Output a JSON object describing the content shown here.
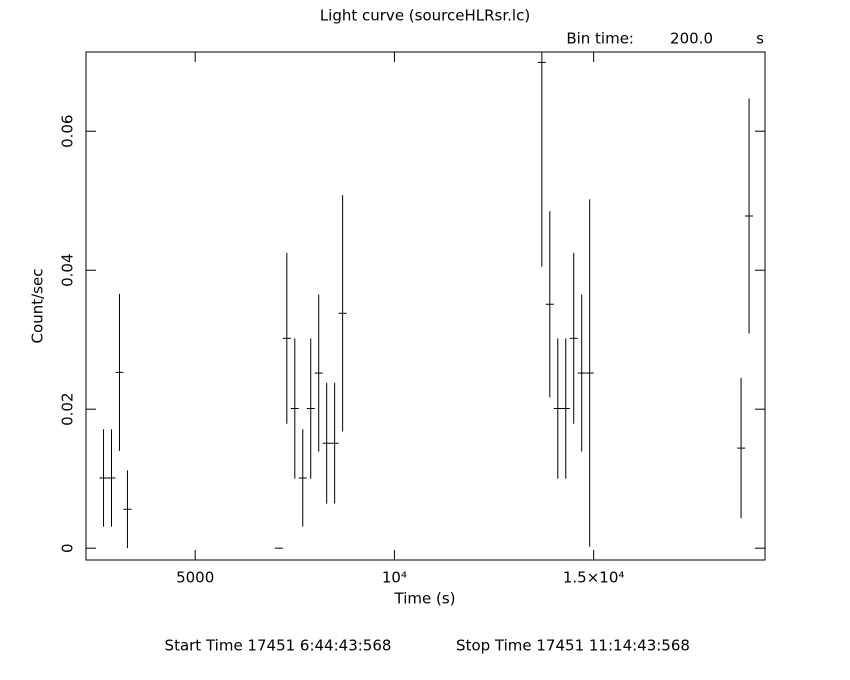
{
  "chart_data": {
    "type": "errorbar",
    "title": "Light curve (sourceHLRsr.lc)",
    "annotations": [
      "Bin time:",
      "200.0",
      "s"
    ],
    "footer": [
      "Start Time 17451  6:44:43:568",
      "Stop Time 17451 11:14:43:568"
    ],
    "xlabel": "Time (s)",
    "ylabel": "Count/sec",
    "xlim": [
      2260,
      19300
    ],
    "ylim": [
      -0.0017,
      0.0714
    ],
    "xticks": [
      {
        "value": 5000,
        "label": "5000"
      },
      {
        "value": 10000,
        "label": "10⁴"
      },
      {
        "value": 15000,
        "label": "1.5×10⁴"
      }
    ],
    "yticks": [
      0,
      0.02,
      0.04,
      0.06
    ],
    "series": [
      {
        "name": "source",
        "color": "#000000",
        "x": [
          2700,
          2900,
          3100,
          3300,
          7100,
          7300,
          7500,
          7700,
          7900,
          8100,
          8300,
          8500,
          8700,
          13700,
          13900,
          14100,
          14300,
          14500,
          14700,
          14900,
          18700,
          18900
        ],
        "values": [
          0.0101,
          0.0101,
          0.0253,
          0.0056,
          0,
          0.0302,
          0.0201,
          0.0101,
          0.0201,
          0.0252,
          0.0151,
          0.0151,
          0.0338,
          0.0699,
          0.0351,
          0.0201,
          0.0201,
          0.0302,
          0.0252,
          0.0252,
          0.0144,
          0.0478
        ],
        "errors": [
          0.007,
          0.007,
          0.0113,
          0.0056,
          0,
          0.0123,
          0.0101,
          0.007,
          0.0101,
          0.0113,
          0.0087,
          0.0087,
          0.017,
          0.0294,
          0.0134,
          0.0101,
          0.0101,
          0.0123,
          0.0113,
          0.025,
          0.0101,
          0.0169
        ]
      }
    ]
  }
}
